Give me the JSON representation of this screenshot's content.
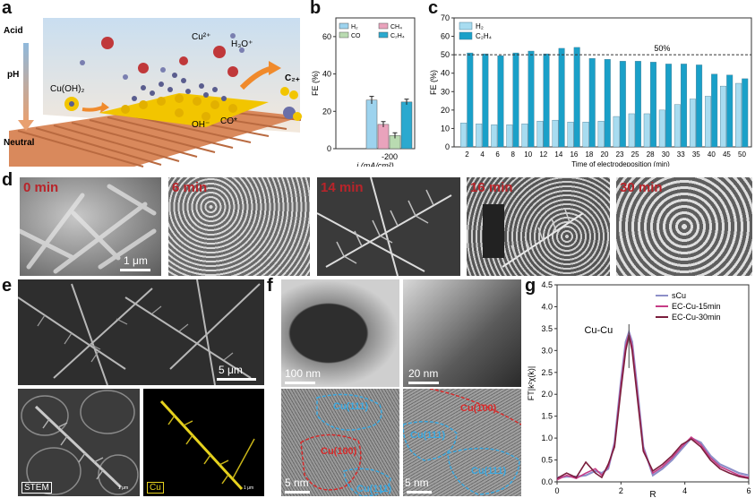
{
  "panels": {
    "a": "a",
    "b": "b",
    "c": "c",
    "d": "d",
    "e": "e",
    "f": "f",
    "g": "g"
  },
  "panel_a": {
    "labels": {
      "acid": "Acid",
      "ph": "pH",
      "neutral": "Neutral",
      "cu2": "Cu²⁺",
      "h3o": "H₃O⁺",
      "cuoh2": "Cu(OH)₂",
      "oh": "OH⁻",
      "co": "CO*",
      "c2": "C₂₊"
    },
    "colors": {
      "copper": "#e09a6c",
      "gold": "#f2c500",
      "sky": "#cfe4f2"
    }
  },
  "chart_b": {
    "type": "bar",
    "categories": [
      "-200"
    ],
    "series": [
      {
        "name": "H₂",
        "values": [
          26
        ],
        "err": [
          2
        ],
        "color": "#9dd3ee"
      },
      {
        "name": "CH₄",
        "values": [
          13
        ],
        "err": [
          1.5
        ],
        "color": "#e9a3bc"
      },
      {
        "name": "CO",
        "values": [
          7
        ],
        "err": [
          1.5
        ],
        "color": "#b9dbb1"
      },
      {
        "name": "C₂H₄",
        "values": [
          25
        ],
        "err": [
          1.5
        ],
        "color": "#2ba9cf"
      }
    ],
    "ylabel": "FE (%)",
    "xlabel": "j (mA/cm²)",
    "ylim": [
      0,
      70
    ],
    "yticks": [
      "0",
      "20",
      "40",
      "60"
    ]
  },
  "chart_c": {
    "type": "bar",
    "x": [
      "2",
      "4",
      "6",
      "8",
      "10",
      "12",
      "14",
      "16",
      "18",
      "20",
      "23",
      "25",
      "28",
      "30",
      "33",
      "35",
      "40",
      "45",
      "50"
    ],
    "series": [
      {
        "name": "H₂",
        "values": [
          13,
          12.5,
          12,
          12,
          12.5,
          14,
          14.5,
          13.5,
          13.5,
          14,
          16.5,
          18,
          18,
          20,
          23,
          26,
          27.5,
          33,
          34.5
        ],
        "color": "#a8dcf0"
      },
      {
        "name": "C₂H₄",
        "values": [
          51,
          50.5,
          49.5,
          51,
          52,
          50.5,
          53.5,
          54,
          48,
          47.5,
          46.5,
          46.5,
          46,
          45,
          45,
          44.5,
          39.5,
          39,
          37
        ],
        "color": "#1aa0c8"
      }
    ],
    "ylabel": "FE (%)",
    "xlabel": "Time of electrodeposition (min)",
    "ylim": [
      0,
      70
    ],
    "yticks": [
      "0",
      "10",
      "20",
      "30",
      "40",
      "50",
      "60",
      "70"
    ],
    "ref_label": "50%",
    "ref_value": 50
  },
  "micro_d": [
    {
      "tag": "0 min",
      "scale": "1 μm"
    },
    {
      "tag": "6 min"
    },
    {
      "tag": "14 min"
    },
    {
      "tag": "16 min"
    },
    {
      "tag": "30 min"
    }
  ],
  "micro_e": {
    "scale": "5 μm",
    "stem": "STEM",
    "cu": "Cu",
    "small_scale_1": "1 μm",
    "small_scale_2": "1 μm"
  },
  "micro_f": {
    "scale_1": "100 nm",
    "scale_2": "20 nm",
    "scale_3": "5 nm",
    "scale_4": "5 nm",
    "planes_3": [
      "Cu(111)",
      "Cu(100)",
      "Cu(111)"
    ],
    "planes_4": [
      "Cu(100)",
      "Cu(111)",
      "Cu(111)"
    ]
  },
  "chart_g": {
    "type": "line",
    "xlabel": "R",
    "ylabel": "FT|k²χ(k)|",
    "xlim": [
      0,
      6
    ],
    "ylim": [
      0,
      4.5
    ],
    "xticks": [
      "0",
      "2",
      "4",
      "6"
    ],
    "yticks": [
      "0.0",
      "0.5",
      "1.0",
      "1.5",
      "2.0",
      "2.5",
      "3.0",
      "3.5",
      "4.0",
      "4.5"
    ],
    "annotation": "Cu-Cu",
    "series": [
      {
        "name": "sCu",
        "color": "#8d8fc8",
        "x": [
          0,
          0.3,
          0.6,
          0.9,
          1.2,
          1.4,
          1.6,
          1.8,
          2.0,
          2.15,
          2.25,
          2.35,
          2.5,
          2.7,
          3.0,
          3.3,
          3.6,
          3.9,
          4.2,
          4.5,
          4.8,
          5.1,
          5.4,
          5.7,
          6.0
        ],
        "y": [
          0.1,
          0.12,
          0.12,
          0.15,
          0.25,
          0.2,
          0.3,
          0.9,
          2.3,
          3.2,
          3.42,
          3.2,
          2.2,
          0.8,
          0.15,
          0.3,
          0.5,
          0.75,
          1.0,
          0.9,
          0.6,
          0.4,
          0.3,
          0.2,
          0.15
        ]
      },
      {
        "name": "EC-Cu-15min",
        "color": "#c63c86",
        "x": [
          0,
          0.3,
          0.6,
          0.9,
          1.2,
          1.4,
          1.6,
          1.8,
          2.0,
          2.15,
          2.25,
          2.35,
          2.5,
          2.7,
          3.0,
          3.3,
          3.6,
          3.9,
          4.2,
          4.5,
          4.8,
          5.1,
          5.4,
          5.7,
          6.0
        ],
        "y": [
          0.05,
          0.15,
          0.08,
          0.2,
          0.3,
          0.15,
          0.35,
          0.85,
          2.2,
          3.1,
          3.38,
          3.1,
          2.1,
          0.75,
          0.2,
          0.35,
          0.55,
          0.8,
          1.02,
          0.85,
          0.55,
          0.35,
          0.25,
          0.15,
          0.1
        ]
      },
      {
        "name": "EC-Cu-30min",
        "color": "#7a1e3c",
        "x": [
          0,
          0.3,
          0.6,
          0.9,
          1.2,
          1.4,
          1.6,
          1.8,
          2.0,
          2.15,
          2.25,
          2.35,
          2.5,
          2.7,
          3.0,
          3.3,
          3.6,
          3.9,
          4.2,
          4.5,
          4.8,
          5.1,
          5.4,
          5.7,
          6.0
        ],
        "y": [
          0.08,
          0.2,
          0.1,
          0.45,
          0.2,
          0.1,
          0.4,
          0.8,
          2.1,
          3.0,
          3.35,
          3.0,
          2.0,
          0.7,
          0.25,
          0.4,
          0.6,
          0.85,
          0.98,
          0.8,
          0.5,
          0.3,
          0.2,
          0.12,
          0.08
        ]
      }
    ]
  }
}
